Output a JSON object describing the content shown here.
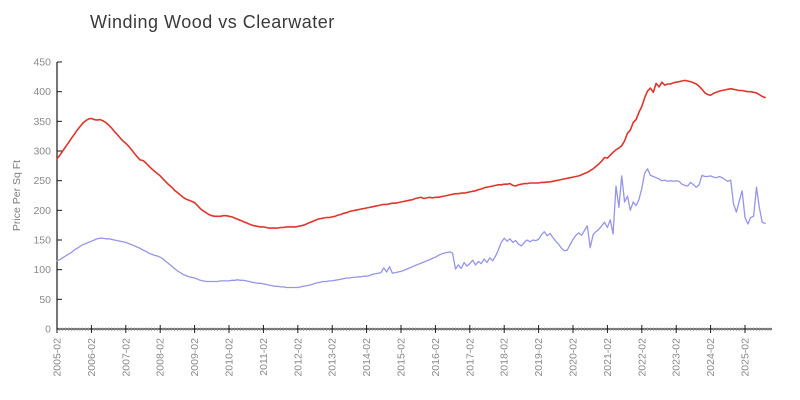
{
  "chart_data": {
    "type": "line",
    "title": "Winding Wood vs Clearwater",
    "xlabel": "",
    "ylabel": "Price Per Sq Ft",
    "x_start": "2005-02",
    "x_step": "1 month",
    "x_tick_labels": [
      "2005-02",
      "2006-02",
      "2007-02",
      "2008-02",
      "2009-02",
      "2010-02",
      "2011-02",
      "2012-02",
      "2013-02",
      "2014-02",
      "2015-02",
      "2016-02",
      "2017-02",
      "2018-02",
      "2019-02",
      "2020-02",
      "2021-02",
      "2022-02",
      "2023-02",
      "2024-02",
      "2025-02"
    ],
    "y_ticks": [
      0,
      50,
      100,
      150,
      200,
      250,
      300,
      350,
      400,
      450
    ],
    "ylim": [
      0,
      450
    ],
    "grid": false,
    "legend_position": "none",
    "axis_color": "#1a1a1a",
    "tick_label_color": "#8a8a8a",
    "series": [
      {
        "name": "Winding Wood",
        "color": "#e0352b",
        "line_width": 1.6,
        "values": [
          287,
          293,
          300,
          307,
          314,
          321,
          328,
          335,
          341,
          347,
          351,
          354,
          355,
          353,
          352,
          353,
          351,
          348,
          344,
          339,
          333,
          328,
          322,
          317,
          313,
          308,
          302,
          296,
          290,
          285,
          284,
          280,
          275,
          270,
          266,
          262,
          258,
          253,
          248,
          243,
          239,
          234,
          230,
          226,
          222,
          219,
          217,
          215,
          213,
          208,
          203,
          199,
          196,
          193,
          191,
          190,
          190,
          190,
          191,
          191,
          190,
          189,
          187,
          185,
          183,
          181,
          179,
          177,
          175,
          174,
          173,
          172,
          172,
          171,
          170,
          170,
          170,
          170,
          171,
          171,
          172,
          172,
          172,
          172,
          173,
          174,
          175,
          177,
          179,
          181,
          183,
          185,
          186,
          187,
          188,
          188,
          189,
          190,
          192,
          193,
          195,
          196,
          198,
          199,
          200,
          201,
          202,
          203,
          204,
          205,
          206,
          207,
          208,
          209,
          210,
          210,
          211,
          212,
          212,
          213,
          214,
          215,
          216,
          217,
          218,
          220,
          221,
          222,
          220,
          221,
          222,
          221,
          222,
          222,
          223,
          224,
          225,
          226,
          227,
          228,
          228,
          229,
          229,
          230,
          231,
          232,
          233,
          235,
          236,
          238,
          239,
          240,
          241,
          242,
          243,
          243,
          244,
          244,
          245,
          242,
          241,
          243,
          244,
          245,
          245,
          246,
          246,
          246,
          246,
          247,
          247,
          248,
          248,
          249,
          250,
          251,
          252,
          253,
          254,
          255,
          256,
          257,
          258,
          260,
          262,
          264,
          267,
          270,
          274,
          278,
          283,
          289,
          288,
          293,
          298,
          302,
          305,
          309,
          317,
          330,
          335,
          348,
          353,
          365,
          375,
          390,
          401,
          406,
          399,
          414,
          408,
          416,
          411,
          413,
          413,
          415,
          416,
          417,
          418,
          419,
          418,
          417,
          415,
          413,
          409,
          404,
          398,
          395,
          394,
          397,
          399,
          401,
          402,
          403,
          404,
          405,
          404,
          403,
          402,
          402,
          401,
          400,
          400,
          399,
          398,
          395,
          392,
          390
        ]
      },
      {
        "name": "Clearwater",
        "color": "#9595ea",
        "line_width": 1.3,
        "values": [
          115,
          117,
          120,
          123,
          126,
          129,
          133,
          136,
          139,
          142,
          144,
          146,
          148,
          150,
          152,
          153,
          153,
          152,
          152,
          151,
          150,
          149,
          148,
          147,
          146,
          144,
          142,
          140,
          138,
          136,
          133,
          131,
          128,
          126,
          124,
          123,
          121,
          118,
          114,
          110,
          106,
          102,
          98,
          95,
          92,
          90,
          88,
          87,
          86,
          84,
          82,
          81,
          80,
          80,
          80,
          80,
          80,
          81,
          81,
          81,
          81,
          82,
          82,
          83,
          82,
          82,
          81,
          80,
          79,
          78,
          77,
          77,
          76,
          75,
          74,
          73,
          72,
          72,
          71,
          71,
          70,
          70,
          70,
          70,
          70,
          71,
          72,
          73,
          74,
          75,
          77,
          78,
          79,
          80,
          80,
          81,
          81,
          82,
          83,
          84,
          85,
          86,
          86,
          87,
          87,
          88,
          88,
          89,
          89,
          90,
          92,
          93,
          94,
          95,
          103,
          96,
          105,
          94,
          95,
          96,
          97,
          99,
          101,
          103,
          105,
          107,
          109,
          111,
          113,
          115,
          117,
          119,
          121,
          124,
          126,
          128,
          129,
          130,
          128,
          101,
          108,
          102,
          112,
          106,
          110,
          116,
          108,
          114,
          110,
          118,
          112,
          120,
          115,
          123,
          134,
          146,
          153,
          148,
          152,
          146,
          149,
          143,
          140,
          146,
          150,
          147,
          150,
          149,
          151,
          159,
          164,
          157,
          161,
          154,
          148,
          143,
          136,
          132,
          133,
          142,
          151,
          158,
          162,
          158,
          166,
          174,
          137,
          159,
          164,
          168,
          174,
          180,
          171,
          184,
          160,
          241,
          205,
          258,
          214,
          224,
          200,
          214,
          208,
          218,
          237,
          263,
          270,
          259,
          257,
          255,
          253,
          250,
          251,
          249,
          250,
          249,
          250,
          249,
          244,
          242,
          241,
          247,
          243,
          239,
          243,
          259,
          257,
          257,
          258,
          256,
          255,
          257,
          255,
          252,
          249,
          251,
          211,
          197,
          216,
          233,
          188,
          177,
          188,
          190,
          239,
          205,
          180,
          178
        ]
      }
    ]
  }
}
